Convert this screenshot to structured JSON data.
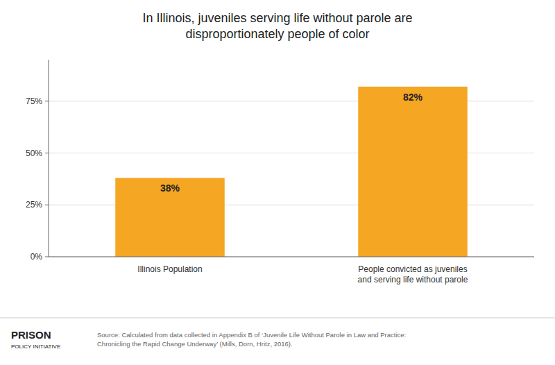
{
  "chart_data": {
    "type": "bar",
    "title": "In Illinois, juveniles serving life without parole are\ndisproportionately people of color",
    "categories": [
      "Illinois Population",
      "People convicted as juveniles\nand serving life without parole"
    ],
    "values": [
      38,
      82
    ],
    "value_labels": [
      "38%",
      "82%"
    ],
    "data_labels": true,
    "color": "#F5A623",
    "ylim": [
      0,
      95
    ],
    "yticks": [
      {
        "value": 0,
        "label": "0%"
      },
      {
        "value": 25,
        "label": "25%"
      },
      {
        "value": 50,
        "label": "50%"
      },
      {
        "value": 75,
        "label": "75%"
      }
    ],
    "grid": true,
    "annotations": [
      "Source: Calculated from data collected in Appendix B of ‘Juvenile Life Without Parole in Law and Practice:\nChronicling the Rapid Change Underway’ (Mills, Dorn, Hritz, 2016).",
      "PRISON",
      "POLICY INITIATIVE"
    ]
  }
}
